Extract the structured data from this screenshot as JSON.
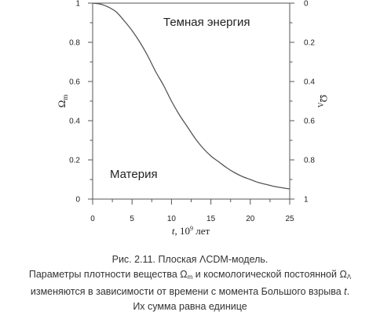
{
  "chart_data": {
    "type": "line",
    "x_label": {
      "var": "t",
      "unit_base": "10",
      "unit_exp": "9",
      "unit_word": "лет"
    },
    "y_left_label": {
      "symbol": "Ω",
      "sub": "m"
    },
    "y_right_label": {
      "symbol": "Ω",
      "sub": "Λ"
    },
    "xlim": [
      0,
      25
    ],
    "ylim_left": [
      0,
      1
    ],
    "ylim_right": [
      1,
      0
    ],
    "x_ticks": [
      "0",
      "5",
      "10",
      "15",
      "20",
      "25"
    ],
    "y_left_ticks": [
      "0",
      "0.2",
      "0.4",
      "0.6",
      "0.8",
      "1"
    ],
    "y_right_ticks": [
      "1",
      "0.8",
      "0.6",
      "0.4",
      "0.2",
      "0"
    ],
    "annotations": {
      "upper": "Темная энергия",
      "lower": "Материя"
    },
    "grid": false,
    "series": [
      {
        "x": [
          0,
          1,
          2,
          3,
          4,
          5,
          6,
          7,
          8,
          9,
          10,
          11,
          12,
          13,
          14,
          15,
          16,
          17,
          18,
          19,
          20,
          21,
          22,
          23,
          24,
          25
        ],
        "values": [
          1.0,
          0.995,
          0.98,
          0.955,
          0.91,
          0.86,
          0.8,
          0.73,
          0.65,
          0.58,
          0.5,
          0.43,
          0.37,
          0.31,
          0.26,
          0.22,
          0.19,
          0.16,
          0.135,
          0.115,
          0.1,
          0.085,
          0.075,
          0.065,
          0.058,
          0.052
        ]
      }
    ]
  },
  "caption": {
    "title": "Рис. 2.11. Плоская ΛCDM-модель.",
    "line1_a": "Параметры плотности вещества Ω",
    "line1_sub1": "m",
    "line1_b": " и космологической постоянной Ω",
    "line1_sub2": "Λ",
    "line2_a": "изменяются в зависимости от времени с момента Большого взрыва ",
    "line2_t": "t",
    "line2_b": ".",
    "line3": "Их сумма равна единице"
  }
}
